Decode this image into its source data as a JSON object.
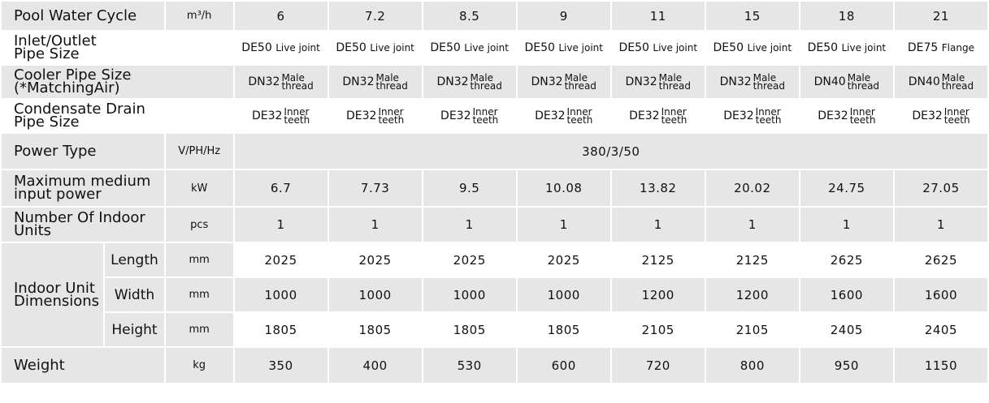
{
  "models_count": 8,
  "rows": {
    "pool_water_cycle": {
      "label": "Pool Water Cycle",
      "unit": "m³/h",
      "values": [
        "6",
        "7.2",
        "8.5",
        "9",
        "11",
        "15",
        "18",
        "21"
      ]
    },
    "inlet_outlet": {
      "label_line1": "Inlet/Outlet",
      "label_line2": "Pipe Size",
      "values": [
        {
          "code": "DE50",
          "desc": "Live joint"
        },
        {
          "code": "DE50",
          "desc": "Live joint"
        },
        {
          "code": "DE50",
          "desc": "Live joint"
        },
        {
          "code": "DE50",
          "desc": "Live joint"
        },
        {
          "code": "DE50",
          "desc": "Live joint"
        },
        {
          "code": "DE50",
          "desc": "Live joint"
        },
        {
          "code": "DE50",
          "desc": "Live joint"
        },
        {
          "code": "DE75",
          "desc": "Flange"
        }
      ]
    },
    "cooler_pipe": {
      "label_line1": "Cooler Pipe Size",
      "label_line2": "(*MatchingAir)",
      "values": [
        {
          "code": "DN32",
          "top": "Male",
          "bottom": "thread"
        },
        {
          "code": "DN32",
          "top": "Male",
          "bottom": "thread"
        },
        {
          "code": "DN32",
          "top": "Male",
          "bottom": "thread"
        },
        {
          "code": "DN32",
          "top": "Male",
          "bottom": "thread"
        },
        {
          "code": "DN32",
          "top": "Male",
          "bottom": "thread"
        },
        {
          "code": "DN32",
          "top": "Male",
          "bottom": "thread"
        },
        {
          "code": "DN40",
          "top": "Male",
          "bottom": "thread"
        },
        {
          "code": "DN40",
          "top": "Male",
          "bottom": "thread"
        }
      ]
    },
    "condensate": {
      "label_line1": "Condensate Drain",
      "label_line2": "Pipe Size",
      "values": [
        {
          "code": "DE32",
          "top": "Inner",
          "bottom": "teeth"
        },
        {
          "code": "DE32",
          "top": "Inner",
          "bottom": "teeth"
        },
        {
          "code": "DE32",
          "top": "Inner",
          "bottom": "teeth"
        },
        {
          "code": "DE32",
          "top": "Inner",
          "bottom": "teeth"
        },
        {
          "code": "DE32",
          "top": "Inner",
          "bottom": "teeth"
        },
        {
          "code": "DE32",
          "top": "Inner",
          "bottom": "teeth"
        },
        {
          "code": "DE32",
          "top": "Inner",
          "bottom": "teeth"
        },
        {
          "code": "DE32",
          "top": "Inner",
          "bottom": "teeth"
        }
      ]
    },
    "power_type": {
      "label": "Power Type",
      "unit": "V/PH/Hz",
      "value": "380/3/50"
    },
    "max_power": {
      "label_line1": "Maximum medium",
      "label_line2": "input power",
      "unit": "kW",
      "values": [
        "6.7",
        "7.73",
        "9.5",
        "10.08",
        "13.82",
        "20.02",
        "24.75",
        "27.05"
      ]
    },
    "indoor_units": {
      "label_line1": "Number Of Indoor",
      "label_line2": "Units",
      "unit": "pcs",
      "values": [
        "1",
        "1",
        "1",
        "1",
        "1",
        "1",
        "1",
        "1"
      ]
    },
    "dimensions": {
      "label_line1": "Indoor Unit",
      "label_line2": "Dimensions",
      "length": {
        "label": "Length",
        "unit": "mm",
        "values": [
          "2025",
          "2025",
          "2025",
          "2025",
          "2125",
          "2125",
          "2625",
          "2625"
        ]
      },
      "width": {
        "label": "Width",
        "unit": "mm",
        "values": [
          "1000",
          "1000",
          "1000",
          "1000",
          "1200",
          "1200",
          "1600",
          "1600"
        ]
      },
      "height": {
        "label": "Height",
        "unit": "mm",
        "values": [
          "1805",
          "1805",
          "1805",
          "1805",
          "2105",
          "2105",
          "2405",
          "2405"
        ]
      }
    },
    "weight": {
      "label": "Weight",
      "unit": "kg",
      "values": [
        "350",
        "400",
        "530",
        "600",
        "720",
        "800",
        "950",
        "1150"
      ]
    }
  }
}
